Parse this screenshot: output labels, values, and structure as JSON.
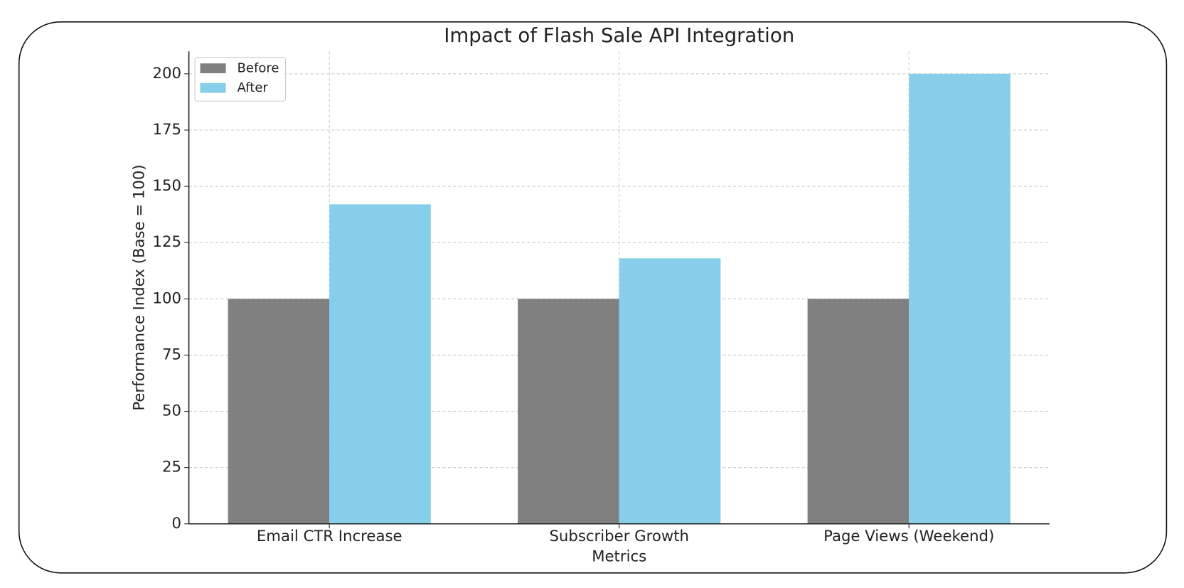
{
  "chart_data": {
    "type": "bar",
    "title": "Impact of Flash Sale API Integration",
    "x_label": "Metrics",
    "y_label": "Performance Index (Base = 100)",
    "categories": [
      "Email CTR Increase",
      "Subscriber Growth",
      "Page Views (Weekend)"
    ],
    "series": [
      {
        "name": "Before",
        "color": "#808080",
        "values": [
          100,
          100,
          100
        ]
      },
      {
        "name": "After",
        "color": "#87ceeb",
        "values": [
          142,
          118,
          200
        ]
      }
    ],
    "ylim": [
      0,
      210
    ],
    "yticks": [
      0,
      25,
      50,
      75,
      100,
      125,
      150,
      175,
      200
    ],
    "grid": true,
    "legend": "upper left"
  }
}
